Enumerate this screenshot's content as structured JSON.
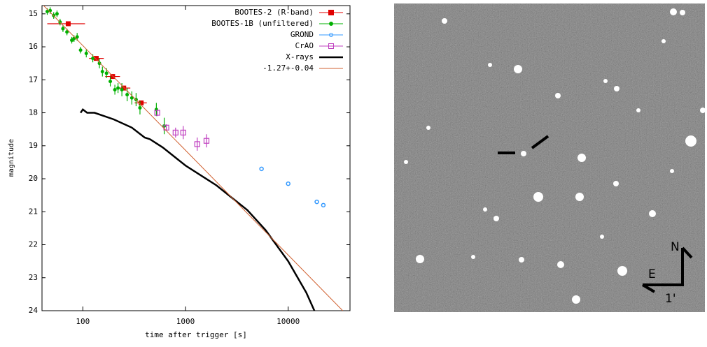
{
  "chart_data": {
    "type": "scatter",
    "xlabel": "time after trigger [s]",
    "ylabel": "magnitude",
    "xscale": "log",
    "xlim": [
      40,
      40000
    ],
    "ylim": [
      24,
      14.75
    ],
    "xticks": [
      100,
      1000,
      10000
    ],
    "yticks": [
      15,
      16,
      17,
      18,
      19,
      20,
      21,
      22,
      23,
      24
    ],
    "legend": "top-right",
    "series": [
      {
        "name": "BOOTES-2 (R-band)",
        "color": "#e00000",
        "marker": "square",
        "x": [
          72,
          135,
          195,
          250,
          370
        ],
        "values": [
          15.3,
          16.35,
          16.9,
          17.25,
          17.7
        ],
        "xerr_low": [
          45,
          115,
          165,
          220,
          320
        ],
        "xerr_high": [
          105,
          160,
          230,
          290,
          420
        ]
      },
      {
        "name": "BOOTES-1B (unfiltered)",
        "color": "#00b000",
        "marker": "dot",
        "x": [
          45,
          48,
          52,
          56,
          60,
          64,
          70,
          78,
          82,
          88,
          95,
          108,
          125,
          145,
          155,
          170,
          185,
          205,
          220,
          240,
          270,
          300,
          330,
          360,
          520,
          620
        ],
        "values": [
          14.93,
          14.9,
          15.05,
          15.0,
          15.25,
          15.45,
          15.55,
          15.8,
          15.75,
          15.7,
          16.1,
          16.2,
          16.35,
          16.5,
          16.75,
          16.8,
          17.05,
          17.3,
          17.25,
          17.3,
          17.45,
          17.55,
          17.6,
          17.85,
          17.9,
          18.4
        ],
        "yerr": [
          0.1,
          0.1,
          0.1,
          0.1,
          0.1,
          0.1,
          0.1,
          0.1,
          0.1,
          0.12,
          0.1,
          0.12,
          0.12,
          0.15,
          0.15,
          0.15,
          0.15,
          0.15,
          0.15,
          0.2,
          0.2,
          0.2,
          0.2,
          0.2,
          0.2,
          0.25
        ]
      },
      {
        "name": "GROND",
        "color": "#3399ff",
        "marker": "circle",
        "x": [
          5500,
          10000,
          19000,
          22000
        ],
        "values": [
          19.7,
          20.15,
          20.7,
          20.8
        ]
      },
      {
        "name": "CrAO",
        "color": "#c040c0",
        "marker": "open-square",
        "x": [
          530,
          650,
          800,
          950,
          1300,
          1600
        ],
        "values": [
          18.0,
          18.45,
          18.6,
          18.6,
          18.95,
          18.85
        ],
        "yerr": [
          0.1,
          0.1,
          0.15,
          0.2,
          0.2,
          0.2
        ]
      },
      {
        "name": "X-rays",
        "color": "#000000",
        "marker": "line",
        "x": [
          95,
          100,
          110,
          130,
          200,
          300,
          400,
          450,
          600,
          1000,
          2000,
          4000,
          6000,
          10000,
          15000,
          18000
        ],
        "values": [
          18.0,
          17.9,
          18.0,
          18.0,
          18.2,
          18.45,
          18.75,
          18.8,
          19.05,
          19.6,
          20.2,
          20.95,
          21.55,
          22.5,
          23.45,
          24.0
        ]
      },
      {
        "name": "-1.27+-0.04",
        "color": "#d06030",
        "marker": "thin-line",
        "x": [
          40,
          34000
        ],
        "values": [
          14.7,
          24.0
        ]
      }
    ]
  },
  "image": {
    "north": "N",
    "east": "E",
    "scale": "1'"
  }
}
